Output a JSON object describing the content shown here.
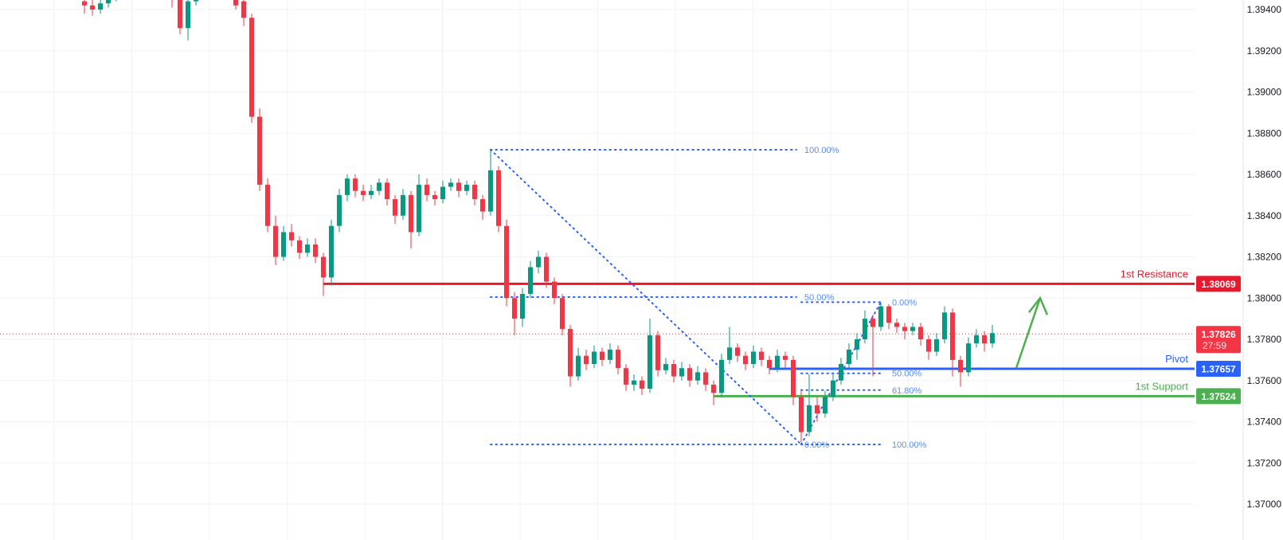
{
  "chart_data": {
    "type": "candlestick",
    "ylim": [
      1.3695,
      1.3945
    ],
    "y_ticks": [
      "1.39400",
      "1.39200",
      "1.39000",
      "1.38800",
      "1.38600",
      "1.38400",
      "1.38200",
      "1.38000",
      "1.37800",
      "1.37600",
      "1.37400",
      "1.37200",
      "1.37000"
    ],
    "grid": true,
    "colors": {
      "up": "#089981",
      "down": "#F23645",
      "resistance": "#E8192C",
      "pivot": "#2962FF",
      "support": "#4CAF50",
      "fib": "#2962FF",
      "arrow": "#4CAF50",
      "axis_text": "#131722",
      "grid": "#F0F3FA"
    },
    "candles_ohlc": [
      [
        1.3944,
        1.3947,
        1.3938,
        1.3942
      ],
      [
        1.3942,
        1.3945,
        1.3937,
        1.394
      ],
      [
        1.394,
        1.3946,
        1.3938,
        1.3943
      ],
      [
        1.3943,
        1.3949,
        1.3941,
        1.3946
      ],
      [
        1.3946,
        1.3953,
        1.3944,
        1.395
      ],
      [
        1.395,
        1.3958,
        1.3948,
        1.3955
      ],
      [
        1.3955,
        1.3961,
        1.3953,
        1.3958
      ],
      [
        1.3958,
        1.396,
        1.3949,
        1.3952
      ],
      [
        1.3952,
        1.3959,
        1.395,
        1.3956
      ],
      [
        1.3956,
        1.3958,
        1.3947,
        1.395
      ],
      [
        1.395,
        1.3952,
        1.3945,
        1.3948
      ],
      [
        1.3948,
        1.395,
        1.3941,
        1.3945
      ],
      [
        1.3945,
        1.3947,
        1.3928,
        1.3931
      ],
      [
        1.3931,
        1.3946,
        1.3925,
        1.3944
      ],
      [
        1.3944,
        1.3955,
        1.3942,
        1.3952
      ],
      [
        1.3952,
        1.3959,
        1.395,
        1.3956
      ],
      [
        1.3956,
        1.3958,
        1.3947,
        1.395
      ],
      [
        1.395,
        1.3956,
        1.3948,
        1.3953
      ],
      [
        1.3953,
        1.3955,
        1.3945,
        1.3948
      ],
      [
        1.3948,
        1.395,
        1.394,
        1.3942
      ],
      [
        1.3944,
        1.3946,
        1.3932,
        1.3936
      ],
      [
        1.3936,
        1.3938,
        1.3885,
        1.3888
      ],
      [
        1.3888,
        1.3892,
        1.3852,
        1.3855
      ],
      [
        1.3855,
        1.3858,
        1.3832,
        1.3835
      ],
      [
        1.3835,
        1.384,
        1.3816,
        1.382
      ],
      [
        1.382,
        1.3835,
        1.3818,
        1.3832
      ],
      [
        1.3832,
        1.3836,
        1.3825,
        1.3828
      ],
      [
        1.3828,
        1.383,
        1.3819,
        1.3822
      ],
      [
        1.3822,
        1.3829,
        1.382,
        1.3826
      ],
      [
        1.3826,
        1.3829,
        1.3817,
        1.382
      ],
      [
        1.382,
        1.3822,
        1.3801,
        1.381
      ],
      [
        1.381,
        1.3838,
        1.3806,
        1.3835
      ],
      [
        1.3835,
        1.3853,
        1.3832,
        1.385
      ],
      [
        1.385,
        1.386,
        1.3847,
        1.3858
      ],
      [
        1.3858,
        1.386,
        1.3849,
        1.3852
      ],
      [
        1.3852,
        1.3855,
        1.3847,
        1.385
      ],
      [
        1.385,
        1.3855,
        1.3848,
        1.3852
      ],
      [
        1.3852,
        1.3858,
        1.385,
        1.3856
      ],
      [
        1.3856,
        1.3858,
        1.3845,
        1.3848
      ],
      [
        1.3848,
        1.385,
        1.3836,
        1.384
      ],
      [
        1.384,
        1.3853,
        1.3838,
        1.385
      ],
      [
        1.385,
        1.3852,
        1.3824,
        1.3832
      ],
      [
        1.3832,
        1.386,
        1.383,
        1.3855
      ],
      [
        1.3855,
        1.3858,
        1.3847,
        1.385
      ],
      [
        1.385,
        1.3852,
        1.3845,
        1.3848
      ],
      [
        1.3848,
        1.3857,
        1.3846,
        1.3854
      ],
      [
        1.3854,
        1.3858,
        1.3852,
        1.3856
      ],
      [
        1.3856,
        1.3858,
        1.3849,
        1.3852
      ],
      [
        1.3852,
        1.3857,
        1.385,
        1.3855
      ],
      [
        1.3855,
        1.3857,
        1.3845,
        1.3848
      ],
      [
        1.3848,
        1.385,
        1.3838,
        1.3842
      ],
      [
        1.3842,
        1.3872,
        1.384,
        1.3862
      ],
      [
        1.3862,
        1.3864,
        1.3832,
        1.3835
      ],
      [
        1.3835,
        1.3838,
        1.3796,
        1.38
      ],
      [
        1.38,
        1.3803,
        1.3782,
        1.379
      ],
      [
        1.379,
        1.3805,
        1.3786,
        1.3802
      ],
      [
        1.3802,
        1.3818,
        1.38,
        1.3815
      ],
      [
        1.3815,
        1.3823,
        1.3812,
        1.382
      ],
      [
        1.382,
        1.3822,
        1.3805,
        1.3808
      ],
      [
        1.3808,
        1.381,
        1.3797,
        1.38
      ],
      [
        1.38,
        1.3802,
        1.3782,
        1.3785
      ],
      [
        1.3785,
        1.3787,
        1.3757,
        1.3762
      ],
      [
        1.3762,
        1.3776,
        1.376,
        1.3772
      ],
      [
        1.3772,
        1.3775,
        1.3765,
        1.3768
      ],
      [
        1.3768,
        1.3777,
        1.3766,
        1.3774
      ],
      [
        1.3774,
        1.3776,
        1.3767,
        1.377
      ],
      [
        1.377,
        1.3778,
        1.3768,
        1.3775
      ],
      [
        1.3775,
        1.3777,
        1.3763,
        1.3766
      ],
      [
        1.3766,
        1.3768,
        1.3755,
        1.3758
      ],
      [
        1.3758,
        1.3763,
        1.3755,
        1.376
      ],
      [
        1.376,
        1.3762,
        1.3753,
        1.3756
      ],
      [
        1.3756,
        1.379,
        1.3754,
        1.3782
      ],
      [
        1.3782,
        1.3784,
        1.3762,
        1.3765
      ],
      [
        1.3765,
        1.3771,
        1.3763,
        1.3768
      ],
      [
        1.3768,
        1.377,
        1.3759,
        1.3762
      ],
      [
        1.3762,
        1.3769,
        1.376,
        1.3766
      ],
      [
        1.3766,
        1.3768,
        1.3757,
        1.376
      ],
      [
        1.376,
        1.3767,
        1.3758,
        1.3764
      ],
      [
        1.3764,
        1.3766,
        1.3755,
        1.3758
      ],
      [
        1.3758,
        1.376,
        1.3748,
        1.3754
      ],
      [
        1.3754,
        1.3773,
        1.3752,
        1.377
      ],
      [
        1.377,
        1.3786,
        1.3768,
        1.3776
      ],
      [
        1.3776,
        1.3778,
        1.3769,
        1.3772
      ],
      [
        1.3772,
        1.3774,
        1.3765,
        1.3768
      ],
      [
        1.3768,
        1.3777,
        1.3766,
        1.3774
      ],
      [
        1.3774,
        1.3776,
        1.3767,
        1.377
      ],
      [
        1.377,
        1.3772,
        1.3763,
        1.3766
      ],
      [
        1.3766,
        1.3775,
        1.3764,
        1.3772
      ],
      [
        1.3772,
        1.3774,
        1.3766,
        1.377
      ],
      [
        1.377,
        1.3772,
        1.3748,
        1.3752
      ],
      [
        1.3752,
        1.3755,
        1.373,
        1.3735
      ],
      [
        1.3735,
        1.3763,
        1.3733,
        1.3748
      ],
      [
        1.3748,
        1.3752,
        1.374,
        1.3744
      ],
      [
        1.3744,
        1.3755,
        1.3742,
        1.3752
      ],
      [
        1.3752,
        1.3763,
        1.375,
        1.376
      ],
      [
        1.376,
        1.3771,
        1.3758,
        1.3768
      ],
      [
        1.3768,
        1.3778,
        1.3766,
        1.3775
      ],
      [
        1.3775,
        1.3783,
        1.377,
        1.378
      ],
      [
        1.378,
        1.3794,
        1.3778,
        1.379
      ],
      [
        1.379,
        1.3792,
        1.3762,
        1.3786
      ],
      [
        1.3786,
        1.3798,
        1.3784,
        1.3796
      ],
      [
        1.3796,
        1.3797,
        1.3785,
        1.3788
      ],
      [
        1.3788,
        1.379,
        1.3783,
        1.3786
      ],
      [
        1.3786,
        1.3788,
        1.378,
        1.3784
      ],
      [
        1.3784,
        1.3788,
        1.3782,
        1.3786
      ],
      [
        1.3786,
        1.3788,
        1.3777,
        1.378
      ],
      [
        1.378,
        1.3782,
        1.377,
        1.3774
      ],
      [
        1.3774,
        1.3783,
        1.3772,
        1.378
      ],
      [
        1.378,
        1.3796,
        1.3778,
        1.3793
      ],
      [
        1.3793,
        1.3795,
        1.3762,
        1.377
      ],
      [
        1.377,
        1.3772,
        1.3757,
        1.3764
      ],
      [
        1.3764,
        1.3781,
        1.3762,
        1.3778
      ],
      [
        1.3778,
        1.3785,
        1.3776,
        1.3782
      ],
      [
        1.3782,
        1.3784,
        1.3774,
        1.3778
      ],
      [
        1.3778,
        1.3787,
        1.3776,
        1.3783
      ]
    ],
    "levels": [
      {
        "key": "resistance",
        "label": "1st Resistance",
        "price": 1.38069,
        "price_label": "1.38069",
        "start_candle": 30
      },
      {
        "key": "pivot",
        "label": "Pivot",
        "price": 1.37657,
        "price_label": "1.37657",
        "start_candle": 86
      },
      {
        "key": "support",
        "label": "1st Support",
        "price": 1.37524,
        "price_label": "1.37524",
        "start_candle": 79
      }
    ],
    "current_price": {
      "price": 1.37826,
      "price_label": "1.37826",
      "countdown": "27:59"
    },
    "fib_retracements": [
      {
        "from": {
          "candle": 51,
          "price": 1.3872
        },
        "to": {
          "candle": 90,
          "price": 1.3729
        },
        "levels": [
          {
            "ratio": 1.0,
            "label": "100.00%"
          },
          {
            "ratio": 0.5,
            "label": "50.00%"
          },
          {
            "ratio": 0.0,
            "label": "0.00%"
          }
        ]
      },
      {
        "from": {
          "candle": 90,
          "price": 1.3729
        },
        "to": {
          "candle": 100,
          "price": 1.3798
        },
        "levels": [
          {
            "ratio": 0.0,
            "label": "0.00%"
          },
          {
            "ratio": 0.5,
            "label": "50.00%"
          },
          {
            "ratio": 0.618,
            "label": "61.80%"
          },
          {
            "ratio": 1.0,
            "label": "100.00%"
          }
        ]
      }
    ],
    "arrow": {
      "direction": "up",
      "from": {
        "candle": 117,
        "price": 1.3766
      },
      "to": {
        "candle": 120,
        "price": 1.38
      }
    }
  }
}
